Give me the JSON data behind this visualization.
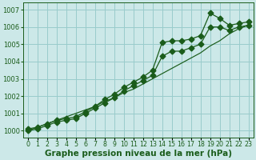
{
  "xlabel": "Graphe pression niveau de la mer (hPa)",
  "bg_color": "#cce8e8",
  "grid_color": "#99cccc",
  "line_color": "#1a5c1a",
  "hours": [
    0,
    1,
    2,
    3,
    4,
    5,
    6,
    7,
    8,
    9,
    10,
    11,
    12,
    13,
    14,
    15,
    16,
    17,
    18,
    19,
    20,
    21,
    22,
    23
  ],
  "series1": [
    1000.1,
    1000.2,
    1000.4,
    1000.6,
    1000.7,
    1000.8,
    1001.1,
    1001.4,
    1001.8,
    1002.1,
    1002.5,
    1002.8,
    1003.1,
    1003.5,
    1005.1,
    1005.2,
    1005.2,
    1005.3,
    1005.5,
    1006.8,
    1006.5,
    1006.1,
    1006.2,
    1006.3
  ],
  "series2": [
    1000.0,
    1000.1,
    1000.3,
    1000.5,
    1000.6,
    1000.7,
    1001.0,
    1001.3,
    1001.6,
    1001.9,
    1002.3,
    1002.6,
    1002.9,
    1003.2,
    1004.3,
    1004.6,
    1004.6,
    1004.8,
    1005.0,
    1006.0,
    1006.0,
    1005.8,
    1006.0,
    1006.1
  ],
  "series_trend": [
    1000.0,
    1000.2,
    1000.4,
    1000.6,
    1000.8,
    1001.0,
    1001.2,
    1001.4,
    1001.7,
    1001.9,
    1002.2,
    1002.4,
    1002.7,
    1003.0,
    1003.3,
    1003.6,
    1003.9,
    1004.2,
    1004.5,
    1004.9,
    1005.2,
    1005.6,
    1005.9,
    1006.1
  ],
  "ylim_min": 999.6,
  "ylim_max": 1007.4,
  "yticks": [
    1000,
    1001,
    1002,
    1003,
    1004,
    1005,
    1006,
    1007
  ],
  "xlabel_fontsize": 7.5,
  "tick_fontsize": 6,
  "marker_size": 3.5
}
